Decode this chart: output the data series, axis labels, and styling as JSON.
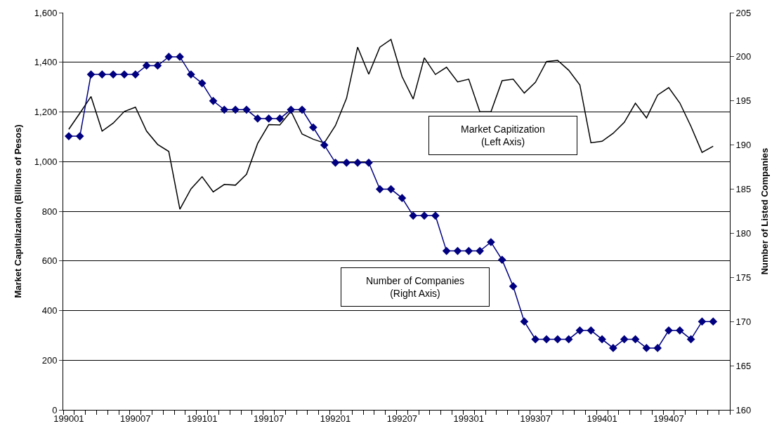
{
  "chart_data": {
    "type": "line",
    "ylabel": "Market Capitalization (Billions of Pesos)",
    "y2label": "Number of Listed Companies",
    "categories": [
      "199001",
      null,
      null,
      null,
      null,
      null,
      "199007",
      null,
      null,
      null,
      null,
      null,
      "199101",
      null,
      null,
      null,
      null,
      null,
      "199107",
      null,
      null,
      null,
      null,
      null,
      "199201",
      null,
      null,
      null,
      null,
      null,
      "199207",
      null,
      null,
      null,
      null,
      null,
      "199301",
      null,
      null,
      null,
      null,
      null,
      "199307",
      null,
      null,
      null,
      null,
      null,
      "199401",
      null,
      null,
      null,
      null,
      null,
      "199407",
      null,
      null,
      null,
      null,
      null
    ],
    "series": [
      {
        "name": "Market Capitization\n(Left Axis)",
        "color": "#000000",
        "marker": "none",
        "values": [
          1130,
          1195,
          1262,
          1123,
          1155,
          1202,
          1219,
          1123,
          1069,
          1041,
          808,
          890,
          939,
          878,
          908,
          905,
          949,
          1073,
          1149,
          1148,
          1203,
          1111,
          1090,
          1075,
          1145,
          1255,
          1461,
          1352,
          1461,
          1492,
          1342,
          1252,
          1418,
          1351,
          1380,
          1321,
          1332,
          1201,
          1201,
          1326,
          1332,
          1276,
          1319,
          1403,
          1408,
          1368,
          1309,
          1076,
          1082,
          1114,
          1158,
          1235,
          1176,
          1268,
          1298,
          1236,
          1142,
          1037,
          1062,
          null
        ]
      },
      {
        "name": "Number of Companies\n(Right Axis)",
        "color": "#000080",
        "marker": "diamond",
        "axis": "y2",
        "values": [
          191,
          191,
          198,
          198,
          198,
          198,
          198,
          199,
          199,
          200,
          200,
          198,
          197,
          195,
          194,
          194,
          194,
          193,
          193,
          193,
          194,
          194,
          192,
          190,
          188,
          188,
          188,
          188,
          185,
          185,
          184,
          182,
          182,
          182,
          178,
          178,
          178,
          178,
          179,
          177,
          174,
          170,
          168,
          168,
          168,
          168,
          169,
          169,
          168,
          167,
          168,
          168,
          167,
          167,
          169,
          169,
          168,
          170,
          170,
          null
        ]
      }
    ],
    "ylim": [
      0,
      1600
    ],
    "yticks": [
      0,
      {
        "value": 200,
        "label": "200"
      },
      {
        "value": 400,
        "label": "400"
      },
      {
        "value": 600,
        "label": "600"
      },
      {
        "value": 800,
        "label": "800"
      },
      {
        "value": 1000,
        "label": "1,000"
      },
      {
        "value": 1200,
        "label": "1,200"
      },
      {
        "value": 1400,
        "label": "1,400"
      },
      {
        "value": 1600,
        "label": "1,600"
      }
    ],
    "y2lim": [
      160,
      205
    ],
    "y2ticks": [
      160,
      165,
      170,
      175,
      180,
      185,
      190,
      195,
      200,
      205
    ],
    "grid": "y",
    "legend": false
  }
}
